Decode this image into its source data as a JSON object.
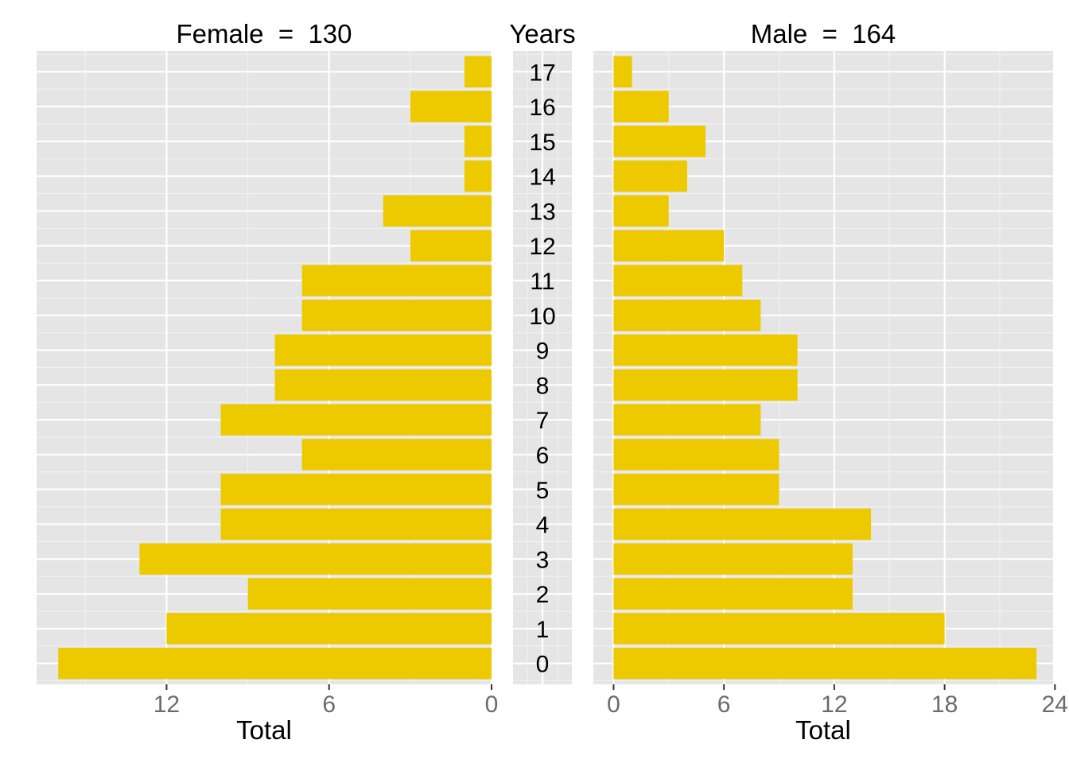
{
  "chart_data": {
    "type": "bar",
    "orientation": "horizontal",
    "layout": "population-pyramid",
    "color": "#EDC900",
    "panel_background": "#E5E5E5",
    "grid": true,
    "categories_label": "Years",
    "categories": [
      "0",
      "1",
      "2",
      "3",
      "4",
      "5",
      "6",
      "7",
      "8",
      "9",
      "10",
      "11",
      "12",
      "13",
      "14",
      "15",
      "16",
      "17"
    ],
    "panels": [
      {
        "name": "Female",
        "title": "Female  =  130",
        "xlabel": "Total",
        "xlim": [
          16.8,
          0
        ],
        "xticks": [
          12,
          6,
          0
        ],
        "xtick_labels": [
          "12",
          "6",
          "0"
        ],
        "values": [
          16,
          12,
          9,
          13,
          10,
          10,
          7,
          10,
          8,
          8,
          7,
          7,
          3,
          4,
          1,
          1,
          3,
          1
        ]
      },
      {
        "name": "Male",
        "title": "Male  =  164",
        "xlabel": "Total",
        "xlim": [
          -1.1,
          23.9
        ],
        "xticks": [
          0,
          6,
          12,
          18,
          24
        ],
        "xtick_labels": [
          "0",
          "6",
          "12",
          "18",
          "24"
        ],
        "values": [
          23,
          18,
          13,
          13,
          14,
          9,
          9,
          8,
          10,
          10,
          8,
          7,
          6,
          3,
          4,
          5,
          3,
          1
        ]
      }
    ]
  }
}
